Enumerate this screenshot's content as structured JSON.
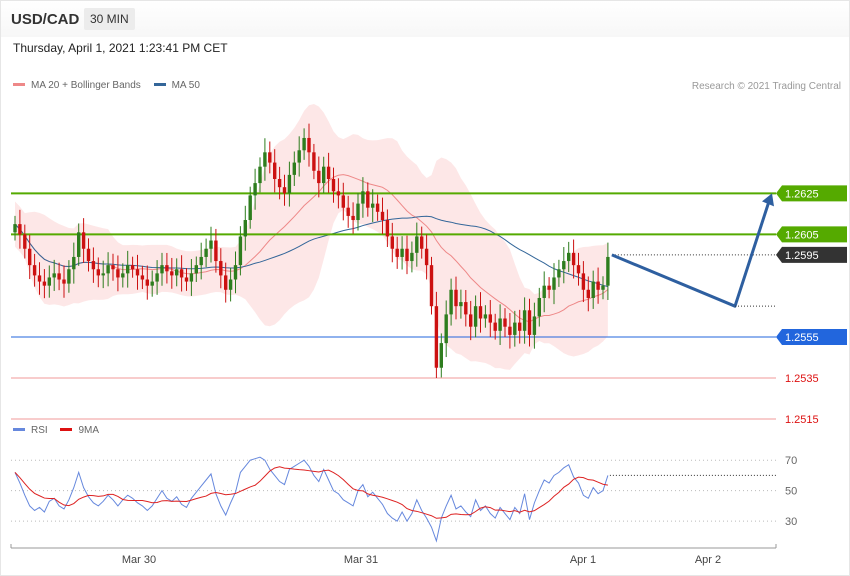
{
  "header": {
    "symbol": "USD/CAD",
    "timeframe": "30 MIN",
    "datetime": "Thursday, April 1, 2021 1:23:41 PM CET",
    "copyright": "Research © 2021 Trading Central"
  },
  "colors": {
    "resistance": "#55aa00",
    "support_blue": "#2266dd",
    "support_red": "#dd1111",
    "current": "#333333",
    "bull": "#2e7d1e",
    "bear": "#cc1111",
    "ma20": "#ee8888",
    "ma50": "#336699",
    "band_fill": "#fde3e3",
    "arrow": "#2e5fa0",
    "rsi": "#6688dd",
    "rsi_ma": "#dd2222"
  },
  "chart_data": [
    {
      "type": "candlestick",
      "legend": [
        {
          "name": "MA 20 + Bollinger Bands",
          "color": "#ee8888"
        },
        {
          "name": "MA 50",
          "color": "#336699"
        }
      ],
      "x_tick_labels": [
        "Mar 30",
        "Mar 31",
        "Apr 1",
        "Apr 2"
      ],
      "y_range": [
        1.2496,
        1.269
      ],
      "levels": [
        {
          "value": 1.2625,
          "label": "1.2625",
          "kind": "resistance"
        },
        {
          "value": 1.2605,
          "label": "1.2605",
          "kind": "resistance"
        },
        {
          "value": 1.2595,
          "label": "1.2595",
          "kind": "current"
        },
        {
          "value": 1.2555,
          "label": "1.2555",
          "kind": "support"
        },
        {
          "value": 1.2535,
          "label": "1.2535",
          "kind": "support_minor"
        },
        {
          "value": 1.2515,
          "label": "1.2515",
          "kind": "support_minor"
        }
      ],
      "projection": [
        1.2595,
        1.257,
        1.2625
      ],
      "close": [
        1.261,
        1.2605,
        1.2598,
        1.259,
        1.2585,
        1.2582,
        1.258,
        1.2584,
        1.2586,
        1.2583,
        1.2581,
        1.2588,
        1.2594,
        1.2606,
        1.2598,
        1.2592,
        1.2588,
        1.2585,
        1.2586,
        1.259,
        1.2588,
        1.2584,
        1.2586,
        1.259,
        1.2588,
        1.2585,
        1.2583,
        1.258,
        1.2582,
        1.2586,
        1.259,
        1.2587,
        1.2585,
        1.2588,
        1.2584,
        1.2582,
        1.2586,
        1.259,
        1.2594,
        1.2598,
        1.2602,
        1.2592,
        1.2585,
        1.2578,
        1.2583,
        1.259,
        1.2604,
        1.2612,
        1.2624,
        1.263,
        1.2638,
        1.2645,
        1.264,
        1.2632,
        1.2628,
        1.2625,
        1.2634,
        1.264,
        1.2646,
        1.2652,
        1.2645,
        1.2636,
        1.263,
        1.2638,
        1.2632,
        1.2626,
        1.2624,
        1.2618,
        1.2614,
        1.2612,
        1.262,
        1.2626,
        1.2618,
        1.262,
        1.2616,
        1.2612,
        1.2604,
        1.2598,
        1.2594,
        1.2598,
        1.2592,
        1.2596,
        1.2604,
        1.2598,
        1.259,
        1.257,
        1.254,
        1.2552,
        1.2566,
        1.2578,
        1.257,
        1.2572,
        1.2566,
        1.256,
        1.257,
        1.2564,
        1.2566,
        1.2562,
        1.2558,
        1.2564,
        1.256,
        1.2556,
        1.2562,
        1.2558,
        1.2568,
        1.2556,
        1.2565,
        1.2574,
        1.258,
        1.2578,
        1.2584,
        1.2588,
        1.2592,
        1.2596,
        1.259,
        1.2586,
        1.2578,
        1.2574,
        1.2582,
        1.2578,
        1.258,
        1.2594
      ],
      "rsi_series": {
        "name": "RSI",
        "levels": [
          70,
          50,
          30
        ],
        "y_range": [
          15,
          78
        ],
        "values": [
          62,
          55,
          47,
          40,
          37,
          39,
          36,
          43,
          45,
          40,
          38,
          44,
          52,
          62,
          52,
          46,
          42,
          40,
          43,
          47,
          44,
          40,
          44,
          47,
          45,
          42,
          40,
          37,
          40,
          45,
          50,
          45,
          43,
          46,
          41,
          39,
          45,
          49,
          53,
          57,
          61,
          48,
          40,
          34,
          42,
          49,
          62,
          66,
          70,
          71,
          72,
          70,
          64,
          60,
          56,
          54,
          64,
          66,
          68,
          70,
          66,
          60,
          56,
          64,
          57,
          50,
          48,
          44,
          42,
          40,
          50,
          54,
          46,
          49,
          45,
          41,
          35,
          32,
          30,
          36,
          30,
          35,
          44,
          37,
          32,
          26,
          17,
          32,
          40,
          47,
          38,
          40,
          36,
          33,
          44,
          37,
          40,
          35,
          32,
          39,
          35,
          31,
          39,
          35,
          48,
          31,
          42,
          50,
          57,
          55,
          60,
          62,
          65,
          67,
          59,
          55,
          47,
          45,
          52,
          48,
          50,
          60
        ]
      },
      "rsi_ma": {
        "name": "9MA"
      }
    }
  ],
  "right_labels": [
    "1.2625",
    "1.2605",
    "1.2595",
    "1.2555",
    "1.2535",
    "1.2515"
  ],
  "rsi_labels": [
    "70",
    "50",
    "30"
  ]
}
